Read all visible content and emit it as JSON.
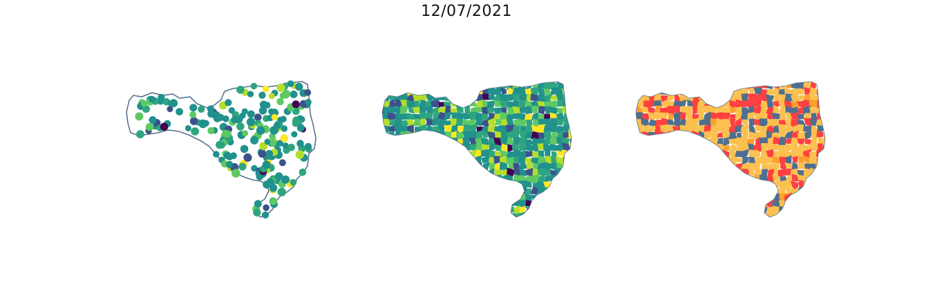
{
  "figure": {
    "title": "12/07/2021"
  },
  "colors": {
    "outline": "#56728c",
    "viridis": [
      "#440154",
      "#3b528b",
      "#21918c",
      "#2ea57f",
      "#5ec962",
      "#b5de2b",
      "#fde725"
    ],
    "categories": [
      "#ff4040",
      "#fbc04f",
      "#fca02c",
      "#4f6f8f"
    ]
  },
  "panels": [
    {
      "name": "points-map",
      "style": "scatter markers over state outline"
    },
    {
      "name": "choropleth-map",
      "style": "continuous viridis"
    },
    {
      "name": "category-map",
      "style": "four-class categorical"
    }
  ]
}
